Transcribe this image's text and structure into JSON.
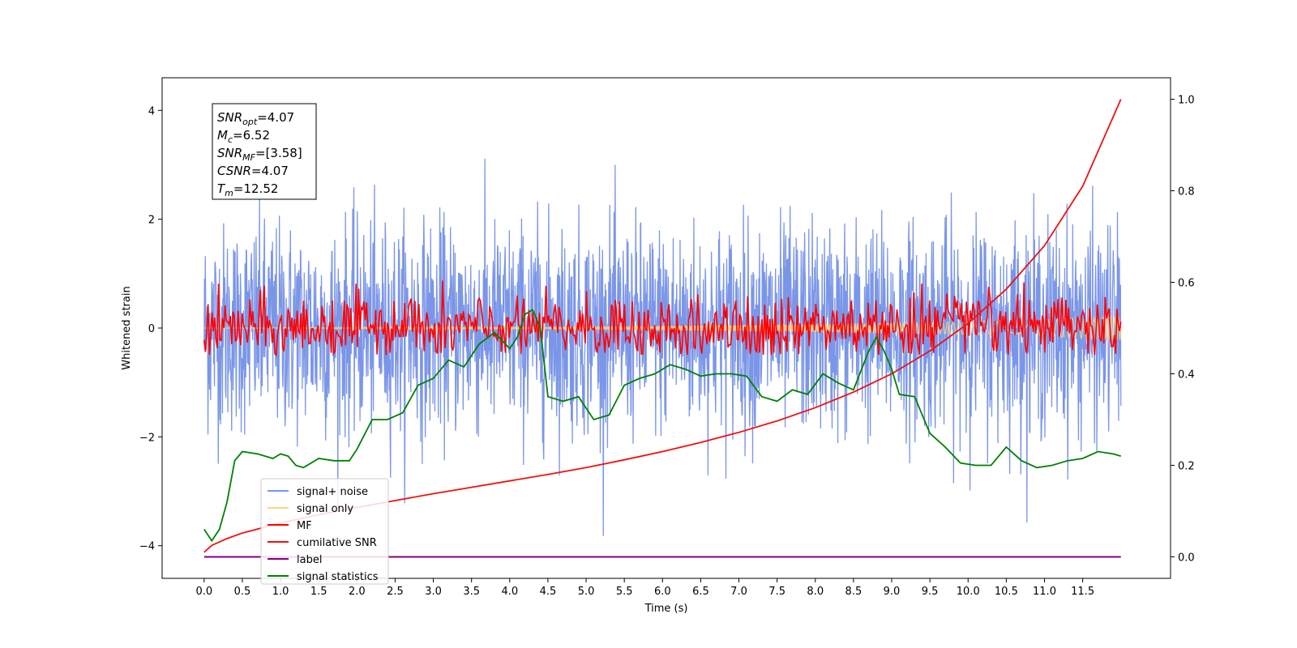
{
  "chart_data": {
    "type": "line",
    "title": "",
    "xlabel": "Time (s)",
    "ylabel": "Whitened strain",
    "y2label": "",
    "xlim": [
      -0.55,
      12.65
    ],
    "ylim": [
      -4.6,
      4.6
    ],
    "y2lim": [
      -0.047,
      1.047
    ],
    "x_ticks": [
      "0.0",
      "0.5",
      "1.0",
      "1.5",
      "2.0",
      "2.5",
      "3.0",
      "3.5",
      "4.0",
      "4.5",
      "5.0",
      "5.5",
      "6.0",
      "6.5",
      "7.0",
      "7.5",
      "8.0",
      "8.5",
      "9.0",
      "9.5",
      "10.0",
      "10.5",
      "11.0",
      "11.5"
    ],
    "y_ticks": [
      "4",
      "2",
      "0",
      "−2",
      "−4"
    ],
    "y2_ticks": [
      "1.0",
      "0.8",
      "0.6",
      "0.4",
      "0.2",
      "0.0"
    ],
    "grid": false,
    "legend_position": "lower-left",
    "stats_box": [
      {
        "var": "SNR",
        "sub": "opt",
        "value": "4.07"
      },
      {
        "var": "M",
        "sub": "c",
        "value": "6.52"
      },
      {
        "var": "SNR",
        "sub": "MF",
        "value": "[3.58]"
      },
      {
        "var": "CSNR",
        "sub": "",
        "value": "4.07"
      },
      {
        "var": "T",
        "sub": "m",
        "value": "12.52"
      }
    ],
    "series": [
      {
        "name": "signal+ noise",
        "color": "#7b96e8",
        "axis": "left",
        "description_note": "dense noise band roughly between -2.6 and 2.6 with peaks near ±4",
        "envelope": {
          "x_start": 0.0,
          "x_end": 12.0,
          "typical_amplitude": 1.5,
          "max_amplitude": 4.1
        }
      },
      {
        "name": "signal only",
        "color": "#ffd27f",
        "axis": "left",
        "x": [
          0.0,
          2.0,
          4.0,
          6.0,
          8.0,
          9.0,
          10.0,
          11.0,
          12.0
        ],
        "amplitude": [
          0.0,
          0.01,
          0.02,
          0.04,
          0.07,
          0.09,
          0.12,
          0.16,
          0.22
        ]
      },
      {
        "name": "MF",
        "color": "#ff0000",
        "axis": "left",
        "description_note": "fluctuating trace roughly between -0.5 and 1.0",
        "envelope": {
          "x_start": 0.0,
          "x_end": 12.0,
          "typical_amplitude": 0.35,
          "max_amplitude": 1.0
        }
      },
      {
        "name": "cumilative SNR",
        "color": "#ee1111",
        "axis": "right",
        "x": [
          0.0,
          0.1,
          0.3,
          0.5,
          1.0,
          1.5,
          2.0,
          2.5,
          3.0,
          3.5,
          4.0,
          4.5,
          5.0,
          5.5,
          6.0,
          6.5,
          7.0,
          7.5,
          8.0,
          8.5,
          9.0,
          9.5,
          10.0,
          10.5,
          11.0,
          11.5,
          12.0
        ],
        "y": [
          0.01,
          0.025,
          0.04,
          0.052,
          0.074,
          0.092,
          0.108,
          0.123,
          0.138,
          0.152,
          0.166,
          0.18,
          0.195,
          0.212,
          0.23,
          0.25,
          0.272,
          0.297,
          0.326,
          0.36,
          0.4,
          0.45,
          0.51,
          0.585,
          0.68,
          0.81,
          1.0
        ]
      },
      {
        "name": "label",
        "color": "#800080",
        "axis": "right",
        "x": [
          0.0,
          12.0
        ],
        "y": [
          0.0,
          0.0
        ]
      },
      {
        "name": "signal statistics",
        "color": "#008000",
        "axis": "right",
        "x": [
          0.0,
          0.1,
          0.2,
          0.3,
          0.4,
          0.5,
          0.7,
          0.9,
          1.0,
          1.1,
          1.2,
          1.3,
          1.5,
          1.7,
          1.9,
          2.0,
          2.2,
          2.4,
          2.6,
          2.8,
          3.0,
          3.2,
          3.4,
          3.6,
          3.8,
          4.0,
          4.1,
          4.2,
          4.3,
          4.4,
          4.5,
          4.7,
          4.9,
          5.1,
          5.3,
          5.5,
          5.7,
          5.9,
          6.1,
          6.3,
          6.5,
          6.7,
          6.9,
          7.1,
          7.3,
          7.5,
          7.7,
          7.9,
          8.1,
          8.3,
          8.5,
          8.7,
          8.8,
          8.9,
          9.0,
          9.1,
          9.3,
          9.5,
          9.7,
          9.9,
          10.1,
          10.3,
          10.5,
          10.7,
          10.9,
          11.1,
          11.3,
          11.5,
          11.7,
          11.9,
          12.0
        ],
        "y": [
          0.06,
          0.035,
          0.06,
          0.12,
          0.21,
          0.23,
          0.225,
          0.215,
          0.225,
          0.22,
          0.2,
          0.195,
          0.215,
          0.21,
          0.21,
          0.235,
          0.3,
          0.3,
          0.315,
          0.375,
          0.39,
          0.43,
          0.415,
          0.465,
          0.49,
          0.455,
          0.48,
          0.53,
          0.54,
          0.5,
          0.35,
          0.34,
          0.35,
          0.3,
          0.31,
          0.375,
          0.39,
          0.4,
          0.42,
          0.41,
          0.395,
          0.4,
          0.4,
          0.395,
          0.35,
          0.34,
          0.365,
          0.355,
          0.4,
          0.38,
          0.365,
          0.45,
          0.48,
          0.45,
          0.41,
          0.355,
          0.35,
          0.27,
          0.24,
          0.205,
          0.2,
          0.2,
          0.24,
          0.21,
          0.195,
          0.2,
          0.21,
          0.215,
          0.23,
          0.225,
          0.22
        ]
      }
    ]
  }
}
